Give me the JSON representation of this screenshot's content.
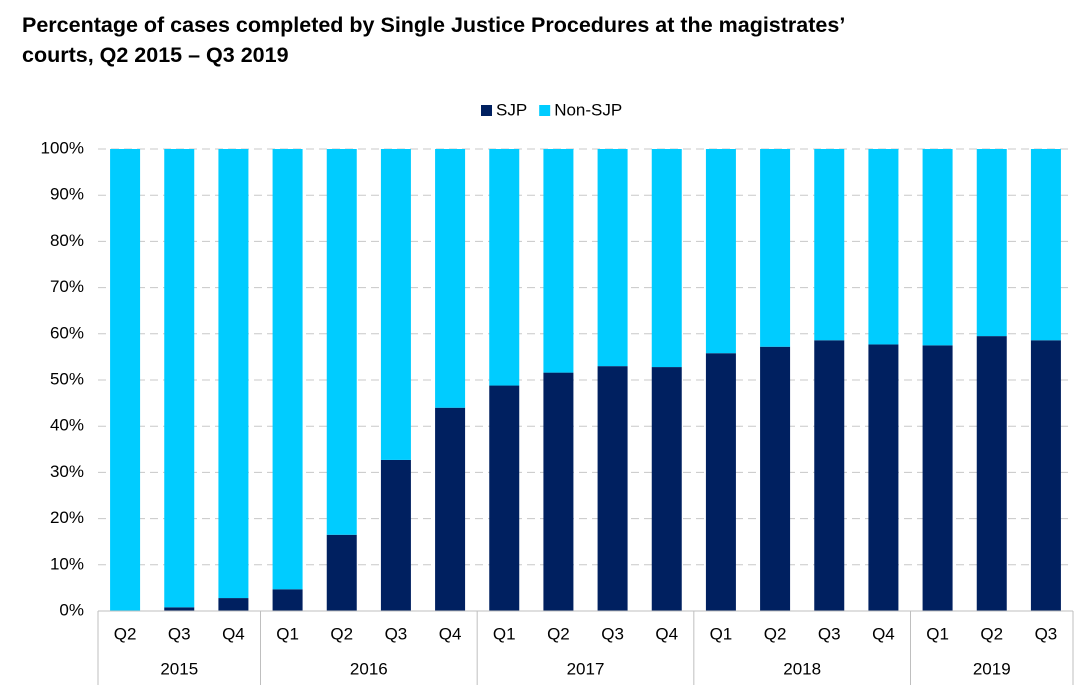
{
  "chart_data": {
    "type": "stacked_bar",
    "title": "Percentage of cases completed by Single Justice Procedures at the magistrates’ courts, Q2 2015 – Q3 2019",
    "groups": [
      {
        "name": "2015",
        "categories": [
          "Q2",
          "Q3",
          "Q4"
        ]
      },
      {
        "name": "2016",
        "categories": [
          "Q1",
          "Q2",
          "Q3",
          "Q4"
        ]
      },
      {
        "name": "2017",
        "categories": [
          "Q1",
          "Q2",
          "Q3",
          "Q4"
        ]
      },
      {
        "name": "2018",
        "categories": [
          "Q1",
          "Q2",
          "Q3",
          "Q4"
        ]
      },
      {
        "name": "2019",
        "categories": [
          "Q1",
          "Q2",
          "Q3"
        ]
      }
    ],
    "series": [
      {
        "name": "SJP",
        "color": "#002060",
        "values": [
          0,
          0.8,
          2.8,
          4.7,
          16.5,
          32.7,
          44.0,
          48.8,
          51.6,
          53.0,
          52.8,
          55.8,
          57.2,
          58.6,
          57.7,
          57.5,
          59.5,
          58.6
        ]
      },
      {
        "name": "Non-SJP",
        "color": "#00ccff",
        "values": [
          100,
          99.2,
          97.2,
          95.3,
          83.5,
          67.3,
          56.0,
          51.2,
          48.4,
          47.0,
          47.2,
          44.2,
          42.8,
          41.4,
          42.3,
          42.5,
          40.5,
          41.4
        ]
      }
    ],
    "ylim": [
      0,
      100
    ],
    "yticks": [
      {
        "value": 0,
        "label": "0%"
      },
      {
        "value": 10,
        "label": "10%"
      },
      {
        "value": 20,
        "label": "20%"
      },
      {
        "value": 30,
        "label": "30%"
      },
      {
        "value": 40,
        "label": "40%"
      },
      {
        "value": 50,
        "label": "50%"
      },
      {
        "value": 60,
        "label": "60%"
      },
      {
        "value": 70,
        "label": "70%"
      },
      {
        "value": 80,
        "label": "80%"
      },
      {
        "value": 90,
        "label": "90%"
      },
      {
        "value": 100,
        "label": "100%"
      }
    ],
    "grid": true,
    "legend": "top"
  }
}
